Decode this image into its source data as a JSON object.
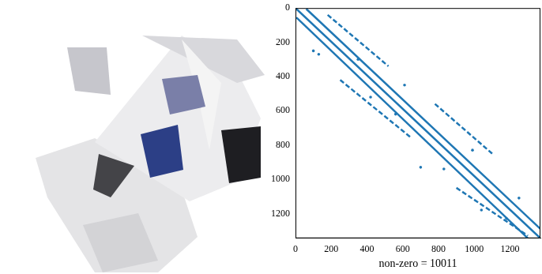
{
  "chart_data": {
    "type": "scatter",
    "x_label": "non-zero = 10011",
    "xlim": [
      0,
      1370
    ],
    "ylim": [
      1345,
      0
    ],
    "xticks": [
      0,
      200,
      400,
      600,
      800,
      1000,
      1200
    ],
    "yticks": [
      0,
      200,
      400,
      600,
      800,
      1000,
      1200
    ],
    "grid": false,
    "series": [
      {
        "color": "#1f77b4",
        "line_style": "solid",
        "x": [
          0,
          1370
        ],
        "values": [
          0,
          1345
        ]
      },
      {
        "color": "#1f77b4",
        "line_style": "solid",
        "x": [
          60,
          1370
        ],
        "values": [
          5,
          1290
        ]
      },
      {
        "color": "#1f77b4",
        "line_style": "solid",
        "x": [
          5,
          1300
        ],
        "values": [
          55,
          1345
        ]
      },
      {
        "color": "#1f77b4",
        "line_style": "dashed",
        "x": [
          180,
          520
        ],
        "values": [
          40,
          340
        ]
      },
      {
        "color": "#1f77b4",
        "line_style": "dashed",
        "x": [
          780,
          1100
        ],
        "values": [
          560,
          850
        ]
      },
      {
        "color": "#1f77b4",
        "line_style": "dashed",
        "x": [
          250,
          650
        ],
        "values": [
          420,
          760
        ]
      },
      {
        "color": "#1f77b4",
        "line_style": "dashed",
        "x": [
          900,
          1300
        ],
        "values": [
          1050,
          1330
        ]
      },
      {
        "color": "#1f77b4",
        "line_style": "none",
        "marker": "point",
        "x": [
          100,
          130,
          350,
          420,
          560,
          610,
          700,
          830,
          990,
          1040,
          1180,
          1250
        ],
        "values": [
          250,
          270,
          300,
          520,
          620,
          450,
          930,
          940,
          830,
          1180,
          1230,
          1110
        ]
      }
    ]
  }
}
